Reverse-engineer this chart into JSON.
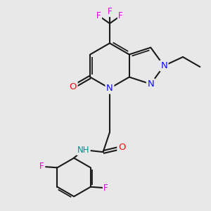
{
  "bg_color": "#e8e8e8",
  "bond_color": "#1a1a1a",
  "bond_lw": 1.5,
  "dbo": 0.075,
  "atom_colors": {
    "N": "#1010ee",
    "O": "#ee1010",
    "F": "#dd00dd",
    "H": "#009090"
  },
  "fs": 8.5,
  "figsize": [
    3.0,
    3.0
  ],
  "dpi": 100
}
